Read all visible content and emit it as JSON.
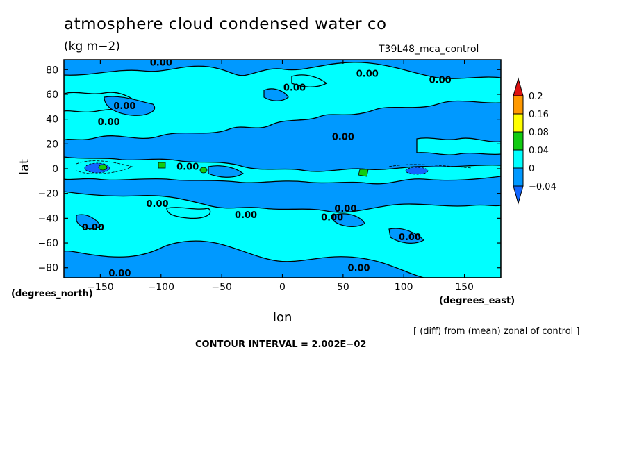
{
  "title": "atmosphere cloud condensed water co",
  "units": "(kg m−2)",
  "run_name": "T39L48_mca_control",
  "note": "[ (diff) from (mean) zonal of control ]",
  "contour_interval_label": "CONTOUR INTERVAL = 2.002E−02",
  "chart_data": {
    "type": "heatmap",
    "title": "atmosphere cloud condensed water co",
    "subtitle": "(kg m−2)",
    "xlabel": "lon",
    "ylabel": "lat",
    "x_unit_label": "(degrees_east)",
    "y_unit_label": "(degrees_north)",
    "xlim": [
      -180,
      180
    ],
    "ylim": [
      -88,
      88
    ],
    "x_ticks": [
      {
        "value": -150,
        "label": "−150"
      },
      {
        "value": -100,
        "label": "−100"
      },
      {
        "value": -50,
        "label": "−50"
      },
      {
        "value": 0,
        "label": "0"
      },
      {
        "value": 50,
        "label": "50"
      },
      {
        "value": 100,
        "label": "100"
      },
      {
        "value": 150,
        "label": "150"
      }
    ],
    "y_ticks": [
      {
        "value": 80,
        "label": "80"
      },
      {
        "value": 60,
        "label": "60"
      },
      {
        "value": 40,
        "label": "40"
      },
      {
        "value": 20,
        "label": "20"
      },
      {
        "value": 0,
        "label": "0"
      },
      {
        "value": -20,
        "label": "−20"
      },
      {
        "value": -40,
        "label": "−40"
      },
      {
        "value": -60,
        "label": "−60"
      },
      {
        "value": -80,
        "label": "−80"
      }
    ],
    "colorbar": {
      "levels": [
        {
          "label": "0.2",
          "value": 0.2
        },
        {
          "label": "0.16",
          "value": 0.16
        },
        {
          "label": "0.08",
          "value": 0.08
        },
        {
          "label": "0.04",
          "value": 0.04
        },
        {
          "label": "0",
          "value": 0
        },
        {
          "label": "−0.04",
          "value": -0.04
        }
      ],
      "colors": [
        "#dd1111",
        "#ff9900",
        "#ffff00",
        "#11cc11",
        "#00ffff",
        "#0099ff",
        "#1166ff"
      ]
    },
    "contour_interval": 0.02002,
    "neg_region_color": "#0099ff",
    "pos_region_color": "#00ffff",
    "contour_labels": [
      {
        "lon": -100,
        "lat": 86,
        "text": "0.00"
      },
      {
        "lon": 70,
        "lat": 77,
        "text": "0.00"
      },
      {
        "lon": 10,
        "lat": 66,
        "text": "0.00"
      },
      {
        "lon": 130,
        "lat": 72,
        "text": "0.00"
      },
      {
        "lon": -130,
        "lat": 51,
        "text": "0.00"
      },
      {
        "lon": -143,
        "lat": 38,
        "text": "0.00"
      },
      {
        "lon": 50,
        "lat": 26,
        "text": "0.00"
      },
      {
        "lon": -78,
        "lat": 2,
        "text": "0.00"
      },
      {
        "lon": -103,
        "lat": -28,
        "text": "0.00"
      },
      {
        "lon": -30,
        "lat": -37,
        "text": "0.00"
      },
      {
        "lon": 52,
        "lat": -32,
        "text": "0.00"
      },
      {
        "lon": 41,
        "lat": -39,
        "text": "0.00"
      },
      {
        "lon": -156,
        "lat": -47,
        "text": "0.00"
      },
      {
        "lon": 105,
        "lat": -55,
        "text": "0.00"
      },
      {
        "lon": -134,
        "lat": -84,
        "text": "0.00"
      },
      {
        "lon": 63,
        "lat": -80,
        "text": "0.00"
      }
    ]
  }
}
